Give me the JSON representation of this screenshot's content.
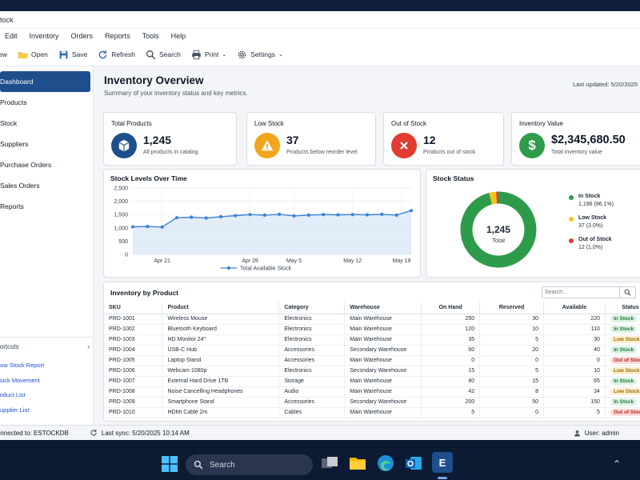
{
  "window": {
    "title": "Stock"
  },
  "menu": [
    "Edit",
    "Inventory",
    "Orders",
    "Reports",
    "Tools",
    "Help"
  ],
  "toolbar": {
    "new": "New",
    "open": "Open",
    "save": "Save",
    "refresh": "Refresh",
    "search": "Search",
    "print": "Print",
    "settings": "Settings"
  },
  "sidebar": {
    "items": [
      "Dashboard",
      "Products",
      "Stock",
      "Suppliers",
      "Purchase Orders",
      "Sales Orders",
      "Reports"
    ],
    "shortcuts_title": "Shortcuts",
    "shortcuts": [
      "Low Stock Report",
      "Stock Movement",
      "Product List",
      "Supplier List"
    ]
  },
  "header": {
    "title": "Inventory Overview",
    "subtitle": "Summary of your inventory status and key metrics.",
    "last_updated": "Last updated: 5/20/2025"
  },
  "kpis": [
    {
      "title": "Total Products",
      "value": "1,245",
      "caption": "All products in catalog",
      "color": "#1f4e8c",
      "icon": "box-icon"
    },
    {
      "title": "Low Stock",
      "value": "37",
      "caption": "Products below reorder level",
      "color": "#f4a51c",
      "icon": "warning-icon"
    },
    {
      "title": "Out of Stock",
      "value": "12",
      "caption": "Products out of stock",
      "color": "#e03c31",
      "icon": "x-icon"
    },
    {
      "title": "Inventory Value",
      "value": "$2,345,680.50",
      "caption": "Total inventory value",
      "color": "#2e9b4a",
      "icon": "dollar-icon"
    }
  ],
  "chart_data": [
    {
      "type": "line",
      "title": "Stock Levels Over Time",
      "x": [
        "Apr 19",
        "Apr 20",
        "Apr 21",
        "Apr 22",
        "Apr 23",
        "Apr 24",
        "Apr 25",
        "Apr 26",
        "Apr 28",
        "Apr 30",
        "May 3",
        "May 5",
        "May 7",
        "May 9",
        "May 10",
        "May 12",
        "May 13",
        "May 15",
        "May 17",
        "May 20"
      ],
      "xticks": [
        "Apr 21",
        "Apr 28",
        "May 5",
        "May 12",
        "May 19"
      ],
      "series": [
        {
          "name": "Total Available Stock",
          "values": [
            1040,
            1050,
            1030,
            1380,
            1400,
            1370,
            1420,
            1460,
            1500,
            1480,
            1510,
            1450,
            1480,
            1500,
            1490,
            1500,
            1490,
            1510,
            1480,
            1650
          ]
        }
      ],
      "ylim": [
        0,
        2500
      ],
      "yticks": [
        "2,500",
        "2,000",
        "1,500",
        "1,000",
        "500",
        "0"
      ],
      "grid": true,
      "legend": "bottom",
      "color": "#3b82d6"
    },
    {
      "type": "pie",
      "title": "Stock Status",
      "center_value": "1,245",
      "center_label": "Total",
      "slices": [
        {
          "name": "In Stock",
          "value": 1196,
          "label": "1,196 (96.1%)",
          "color": "#2e9b4a"
        },
        {
          "name": "Low Stock",
          "value": 37,
          "label": "37 (3.0%)",
          "color": "#f4c31c"
        },
        {
          "name": "Out of Stock",
          "value": 12,
          "label": "12 (1.0%)",
          "color": "#e03c31"
        }
      ],
      "legend": "right"
    }
  ],
  "table": {
    "title": "Inventory by Product",
    "search_placeholder": "Search...",
    "columns": [
      "SKU",
      "Product",
      "Category",
      "Warehouse",
      "On Hand",
      "Reserved",
      "Available",
      "Status"
    ],
    "rows": [
      [
        "PRD-1001",
        "Wireless Mouse",
        "Electronics",
        "Main Warehouse",
        "250",
        "30",
        "220",
        "In Stock"
      ],
      [
        "PRD-1002",
        "Bluetooth Keyboard",
        "Electronics",
        "Main Warehouse",
        "120",
        "10",
        "110",
        "In Stock"
      ],
      [
        "PRD-1003",
        "HD Monitor 24\"",
        "Electronics",
        "Main Warehouse",
        "35",
        "5",
        "30",
        "Low Stock"
      ],
      [
        "PRD-1004",
        "USB-C Hub",
        "Accessories",
        "Secondary Warehouse",
        "60",
        "20",
        "40",
        "In Stock"
      ],
      [
        "PRD-1005",
        "Laptop Stand",
        "Accessories",
        "Main Warehouse",
        "0",
        "0",
        "0",
        "Out of Stock"
      ],
      [
        "PRD-1006",
        "Webcam 1080p",
        "Electronics",
        "Secondary Warehouse",
        "15",
        "5",
        "10",
        "Low Stock"
      ],
      [
        "PRD-1007",
        "External Hard Drive 1TB",
        "Storage",
        "Main Warehouse",
        "80",
        "15",
        "65",
        "In Stock"
      ],
      [
        "PRD-1008",
        "Noise Cancelling Headphones",
        "Audio",
        "Main Warehouse",
        "42",
        "8",
        "34",
        "Low Stock"
      ],
      [
        "PRD-1009",
        "Smartphone Stand",
        "Accessories",
        "Secondary Warehouse",
        "200",
        "50",
        "150",
        "In Stock"
      ],
      [
        "PRD-1010",
        "HDMI Cable 2m",
        "Cables",
        "Main Warehouse",
        "5",
        "0",
        "5",
        "Out of Stock"
      ]
    ],
    "status_colors": {
      "In Stock": {
        "bg": "#dcf3e2",
        "fg": "#1e7a3a"
      },
      "Low Stock": {
        "bg": "#fdf0cf",
        "fg": "#9a6a00"
      },
      "Out of Stock": {
        "bg": "#fbdcd9",
        "fg": "#b3261e"
      }
    }
  },
  "statusbar": {
    "connection": "Connected to: ESTOCKDB",
    "sync": "Last sync: 5/20/2025 10:14 AM",
    "user": "User: admin"
  },
  "taskbar": {
    "search_label": "Search"
  }
}
